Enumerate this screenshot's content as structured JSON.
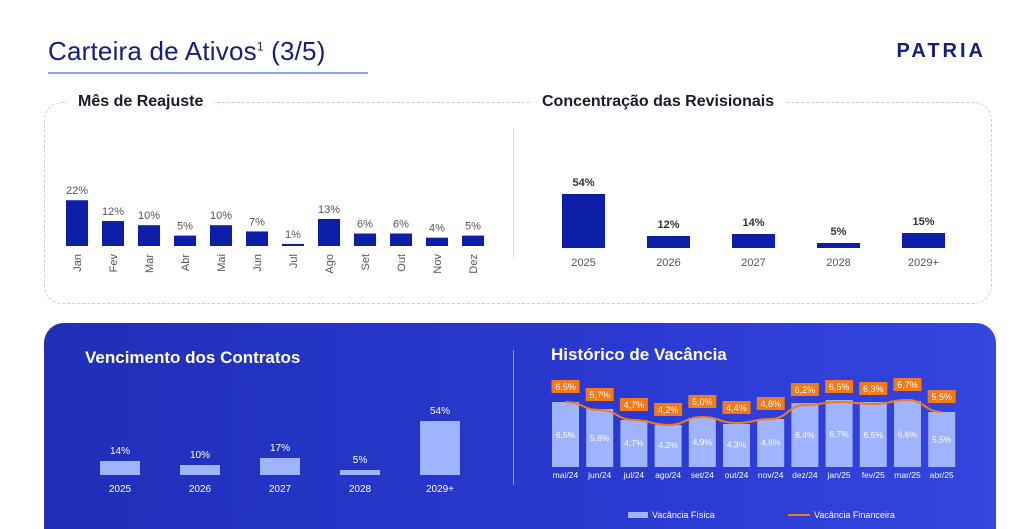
{
  "header": {
    "title": "Carteira de Ativos",
    "title_sup": "1",
    "title_suffix": " (3/5)",
    "logo": "PATRIA"
  },
  "sections": {
    "mes_reajuste": "Mês de Reajuste",
    "concentracao": "Concentração das Revisionais",
    "vencimento": "Vencimento dos Contratos",
    "vacancia": "Histórico de Vacância"
  },
  "legend": {
    "bar": "Vacância Física",
    "line": "Vacância Financeira"
  },
  "colors": {
    "dark_bar": "#0d1fa8",
    "light_bar": "#9fb3ff",
    "orange": "#f27a1a",
    "panel": "#2333c2"
  },
  "chart_data": [
    {
      "type": "bar",
      "title": "Mês de Reajuste",
      "categories": [
        "Jan",
        "Fev",
        "Mar",
        "Abr",
        "Mai",
        "Jun",
        "Jul",
        "Ago",
        "Set",
        "Out",
        "Nov",
        "Dez"
      ],
      "values": [
        22,
        12,
        10,
        5,
        10,
        7,
        1,
        13,
        6,
        6,
        4,
        5
      ],
      "labels": [
        "22%",
        "12%",
        "10%",
        "5%",
        "10%",
        "7%",
        "1%",
        "13%",
        "6%",
        "6%",
        "4%",
        "5%"
      ],
      "ylim": [
        0,
        25
      ]
    },
    {
      "type": "bar",
      "title": "Concentração das Revisionais",
      "categories": [
        "2025",
        "2026",
        "2027",
        "2028",
        "2029+"
      ],
      "values": [
        54,
        12,
        14,
        5,
        15
      ],
      "labels": [
        "54%",
        "12%",
        "14%",
        "5%",
        "15%"
      ],
      "ylim": [
        0,
        60
      ]
    },
    {
      "type": "bar",
      "title": "Vencimento dos Contratos",
      "categories": [
        "2025",
        "2026",
        "2027",
        "2028",
        "2029+"
      ],
      "values": [
        14,
        10,
        17,
        5,
        54
      ],
      "labels": [
        "14%",
        "10%",
        "17%",
        "5%",
        "54%"
      ],
      "ylim": [
        0,
        60
      ]
    },
    {
      "type": "bar",
      "title": "Histórico de Vacância",
      "categories": [
        "mai/24",
        "jun/24",
        "jul/24",
        "ago/24",
        "set/24",
        "out/24",
        "nov/24",
        "dez/24",
        "jan/25",
        "fev/25",
        "mar/25",
        "abr/25"
      ],
      "series": [
        {
          "name": "Vacância Física",
          "type": "bar",
          "values": [
            6.5,
            5.8,
            4.7,
            4.2,
            4.9,
            4.3,
            4.8,
            6.4,
            6.7,
            6.5,
            6.6,
            5.5
          ],
          "labels": [
            "6,5%",
            "5,8%",
            "4,7%",
            "4,2%",
            "4,9%",
            "4,3%",
            "4,8%",
            "6,4%",
            "6,7%",
            "6,5%",
            "6,6%",
            "5,5%"
          ]
        },
        {
          "name": "Vacância Financeira",
          "type": "line",
          "values": [
            6.5,
            5.7,
            4.7,
            4.2,
            5.0,
            4.4,
            4.8,
            6.2,
            6.5,
            6.3,
            6.7,
            5.5
          ],
          "labels": [
            "6,5%",
            "5,7%",
            "4,7%",
            "4,2%",
            "5,0%",
            "4,4%",
            "4,8%",
            "6,2%",
            "6,5%",
            "6,3%",
            "6,7%",
            "5,5%"
          ]
        }
      ],
      "ylim": [
        0,
        7
      ]
    }
  ]
}
